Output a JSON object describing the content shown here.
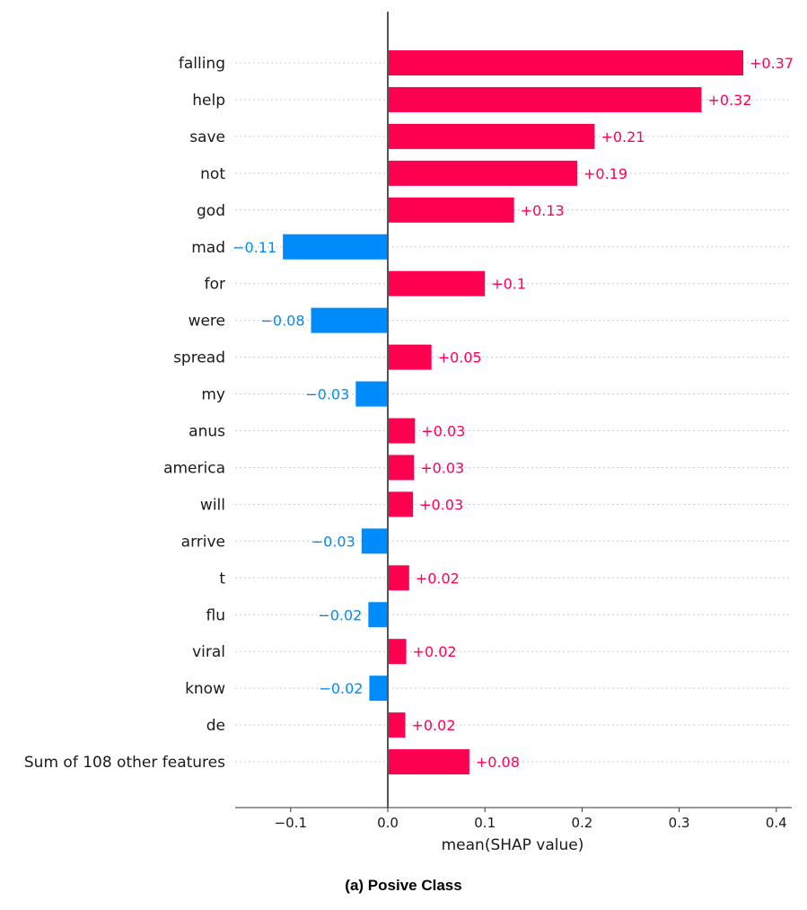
{
  "chart_data": {
    "type": "bar",
    "orientation": "horizontal",
    "xlabel": "mean(SHAP value)",
    "xlim": [
      -0.16,
      0.42
    ],
    "xticks": [
      -0.1,
      0.0,
      0.1,
      0.2,
      0.3,
      0.4
    ],
    "xtick_labels": [
      "−0.1",
      "0.0",
      "0.1",
      "0.2",
      "0.3",
      "0.4"
    ],
    "categories": [
      "falling",
      "help",
      "save",
      "not",
      "god",
      "mad",
      "for",
      "were",
      "spread",
      "my",
      "anus",
      "america",
      "will",
      "arrive",
      "t",
      "flu",
      "viral",
      "know",
      "de",
      "Sum of 108 other features"
    ],
    "values": [
      0.366,
      0.323,
      0.213,
      0.195,
      0.13,
      -0.108,
      0.1,
      -0.079,
      0.045,
      -0.033,
      0.028,
      0.027,
      0.026,
      -0.027,
      0.022,
      -0.02,
      0.019,
      -0.019,
      0.018,
      0.084
    ],
    "value_labels": [
      "+0.37",
      "+0.32",
      "+0.21",
      "+0.19",
      "+0.13",
      "−0.11",
      "+0.1",
      "−0.08",
      "+0.05",
      "−0.03",
      "+0.03",
      "+0.03",
      "+0.03",
      "−0.03",
      "+0.02",
      "−0.02",
      "+0.02",
      "−0.02",
      "+0.02",
      "+0.08"
    ],
    "positive_color": "#ff0051",
    "negative_color": "#008bfb"
  },
  "caption": "(a) Posive Class"
}
